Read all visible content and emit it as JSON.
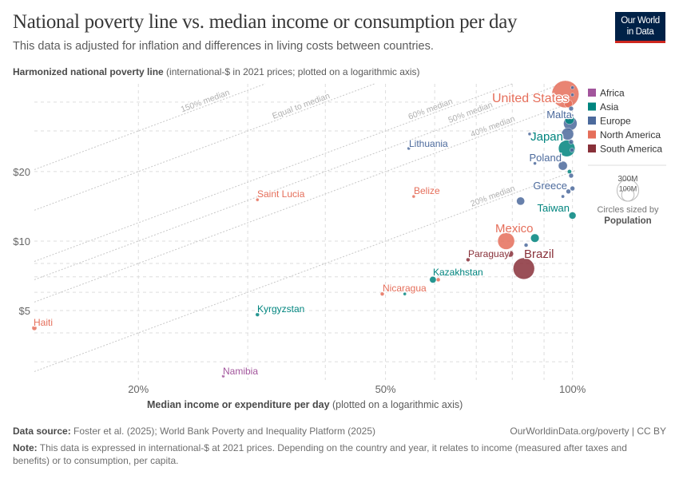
{
  "header": {
    "title": "National poverty line vs. median income or consumption per day",
    "subtitle": "This data is adjusted for inflation and differences in living costs between countries.",
    "logo_line1": "Our World",
    "logo_line2": "in Data"
  },
  "footer": {
    "source_label": "Data source:",
    "source_text": " Foster et al. (2025); World Bank Poverty and Inequality Platform (2025)",
    "url": "OurWorldinData.org/poverty | CC BY",
    "note_label": "Note:",
    "note_text": " This data is expressed in international-$ at 2021 prices. Depending on the country and year, it relates to income (measured after taxes and benefits) or to consumption, per capita."
  },
  "chart_data": {
    "type": "scatter",
    "title": "National poverty line vs. median income or consumption per day",
    "ylabel_bold": "Harmonized national poverty line",
    "ylabel_rest": " (international-$ in 2021 prices; plotted on a logarithmic axis)",
    "xlabel_bold": "Median income or expenditure per day",
    "xlabel_rest": " (plotted on a logarithmic axis)",
    "x_scale": "log",
    "y_scale": "log",
    "xlim": [
      13.6,
      101
    ],
    "ylim": [
      2.5,
      48
    ],
    "grid": true,
    "x_ticks": [
      {
        "value": 20,
        "label": "20%"
      },
      {
        "value": 50,
        "label": "50%"
      },
      {
        "value": 100,
        "label": "100%"
      }
    ],
    "x_gridlines": [
      20,
      30,
      40,
      50,
      60,
      70,
      80,
      90,
      100
    ],
    "y_ticks": [
      {
        "value": 5,
        "label": "$5"
      },
      {
        "value": 10,
        "label": "$10"
      },
      {
        "value": 20,
        "label": "$20"
      }
    ],
    "y_gridlines": [
      3,
      4,
      5,
      6,
      7,
      8,
      10,
      20,
      30,
      40
    ],
    "reference_lines": [
      {
        "ratio": 1.5,
        "label": "150% median"
      },
      {
        "ratio": 1.0,
        "label": "Equal to median"
      },
      {
        "ratio": 0.6,
        "label": "60% median"
      },
      {
        "ratio": 0.5,
        "label": "50% median"
      },
      {
        "ratio": 0.4,
        "label": "40% median"
      },
      {
        "ratio": 0.2,
        "label": "20% median"
      }
    ],
    "legend": {
      "position": "right",
      "regions": [
        {
          "name": "Africa",
          "color": "#a2559c"
        },
        {
          "name": "Asia",
          "color": "#00847e"
        },
        {
          "name": "Europe",
          "color": "#4c6a9c"
        },
        {
          "name": "North America",
          "color": "#e56e5a"
        },
        {
          "name": "South America",
          "color": "#883039"
        }
      ],
      "size_values": [
        "300M",
        "100M"
      ],
      "size_caption": "Circles sized by",
      "size_variable": "Population"
    },
    "points": [
      {
        "label": "United States",
        "region": "North America",
        "x": 97.4,
        "y": 43.3,
        "pop": 340
      },
      {
        "label": "",
        "region": "Europe",
        "x": 100,
        "y": 46.2,
        "pop": 5
      },
      {
        "label": "",
        "region": "Europe",
        "x": 100,
        "y": 43.0,
        "pop": 5
      },
      {
        "label": "",
        "region": "North America",
        "x": 98.5,
        "y": 39.4,
        "pop": 30
      },
      {
        "label": "",
        "region": "Europe",
        "x": 99.5,
        "y": 37.5,
        "pop": 10
      },
      {
        "label": "Malta",
        "region": "Europe",
        "x": 99.8,
        "y": 35.0,
        "pop": 1
      },
      {
        "label": "",
        "region": "Asia",
        "x": 98.9,
        "y": 33.6,
        "pop": 40
      },
      {
        "label": "",
        "region": "Europe",
        "x": 99.2,
        "y": 32.3,
        "pop": 84
      },
      {
        "label": "",
        "region": "Europe",
        "x": 85.3,
        "y": 29.1,
        "pop": 3
      },
      {
        "label": "",
        "region": "Europe",
        "x": 98.2,
        "y": 29.1,
        "pop": 68
      },
      {
        "label": "",
        "region": "Europe",
        "x": 99.5,
        "y": 26.9,
        "pop": 10
      },
      {
        "label": "Japan",
        "region": "Asia",
        "x": 97.9,
        "y": 25.2,
        "pop": 125
      },
      {
        "label": "",
        "region": "Europe",
        "x": 99.8,
        "y": 24.8,
        "pop": 8
      },
      {
        "label": "",
        "region": "Europe",
        "x": 87.0,
        "y": 21.7,
        "pop": 2
      },
      {
        "label": "Poland",
        "region": "Europe",
        "x": 96.5,
        "y": 21.2,
        "pop": 37
      },
      {
        "label": "",
        "region": "Asia",
        "x": 98.9,
        "y": 20.0,
        "pop": 8
      },
      {
        "label": "",
        "region": "Europe",
        "x": 99.5,
        "y": 19.2,
        "pop": 10
      },
      {
        "label": "",
        "region": "Europe",
        "x": 100,
        "y": 16.9,
        "pop": 10
      },
      {
        "label": "Greece",
        "region": "Europe",
        "x": 98.5,
        "y": 16.4,
        "pop": 10
      },
      {
        "label": "",
        "region": "Europe",
        "x": 96.5,
        "y": 15.6,
        "pop": 5
      },
      {
        "label": "",
        "region": "Europe",
        "x": 82.5,
        "y": 14.9,
        "pop": 30
      },
      {
        "label": "Taiwan",
        "region": "Asia",
        "x": 100,
        "y": 12.9,
        "pop": 23
      },
      {
        "label": "Lithuania",
        "region": "Europe",
        "x": 54.5,
        "y": 25.2,
        "pop": 3
      },
      {
        "label": "Saint Lucia",
        "region": "North America",
        "x": 31.1,
        "y": 15.1,
        "pop": 0.2
      },
      {
        "label": "Belize",
        "region": "North America",
        "x": 55.5,
        "y": 15.6,
        "pop": 0.4
      },
      {
        "label": "Mexico",
        "region": "North America",
        "x": 78.2,
        "y": 10.0,
        "pop": 130
      },
      {
        "label": "",
        "region": "Asia",
        "x": 87.0,
        "y": 10.3,
        "pop": 33
      },
      {
        "label": "",
        "region": "Europe",
        "x": 84.2,
        "y": 9.6,
        "pop": 7
      },
      {
        "label": "Paraguay",
        "region": "South America",
        "x": 67.9,
        "y": 8.3,
        "pop": 7
      },
      {
        "label": "",
        "region": "South America",
        "x": 79.4,
        "y": 8.8,
        "pop": 19
      },
      {
        "label": "Brazil",
        "region": "South America",
        "x": 83.5,
        "y": 7.6,
        "pop": 211
      },
      {
        "label": "Kazakhstan",
        "region": "Asia",
        "x": 59.6,
        "y": 6.8,
        "pop": 20
      },
      {
        "label": "",
        "region": "North America",
        "x": 60.8,
        "y": 6.8,
        "pop": 7
      },
      {
        "label": "Nicaragua",
        "region": "North America",
        "x": 49.4,
        "y": 5.9,
        "pop": 7
      },
      {
        "label": "",
        "region": "Asia",
        "x": 53.7,
        "y": 5.9,
        "pop": 3
      },
      {
        "label": "Kyrgyzstan",
        "region": "Asia",
        "x": 31.1,
        "y": 4.8,
        "pop": 7
      },
      {
        "label": "Haiti",
        "region": "North America",
        "x": 13.6,
        "y": 4.2,
        "pop": 11
      },
      {
        "label": "Namibia",
        "region": "Africa",
        "x": 27.4,
        "y": 2.6,
        "pop": 3
      }
    ]
  }
}
